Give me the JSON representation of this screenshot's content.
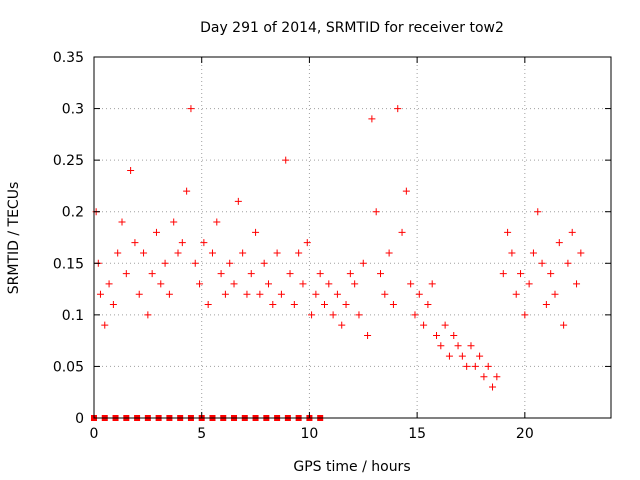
{
  "chart_data": {
    "type": "scatter",
    "title": "Day 291 of 2014, SRMTID for receiver tow2",
    "xlabel": "GPS time / hours",
    "ylabel": "SRMTID / TECUs",
    "xlim": [
      0,
      24
    ],
    "ylim": [
      0,
      0.35
    ],
    "x_ticks": [
      0,
      5,
      10,
      15,
      20
    ],
    "x_tick_labels": [
      "0",
      "5",
      "10",
      "15",
      "20"
    ],
    "y_ticks": [
      0,
      0.05,
      0.1,
      0.15,
      0.2,
      0.25,
      0.3,
      0.35
    ],
    "y_tick_labels": [
      "0",
      "0.05",
      "0.1",
      "0.15",
      "0.2",
      "0.25",
      "0.3",
      "0.35"
    ],
    "grid": true,
    "marker": "plus",
    "series": [
      {
        "name": "SRMTID",
        "color": "#ff0000",
        "x": [
          0.1,
          0.2,
          0.3,
          0.5,
          0.7,
          0.9,
          1.1,
          1.3,
          1.5,
          1.7,
          1.9,
          2.1,
          2.3,
          2.5,
          2.7,
          2.9,
          3.1,
          3.3,
          3.5,
          3.7,
          3.9,
          4.1,
          4.3,
          4.5,
          4.7,
          4.9,
          5.1,
          5.3,
          5.5,
          5.7,
          5.9,
          6.1,
          6.3,
          6.5,
          6.7,
          6.9,
          7.1,
          7.3,
          7.5,
          7.7,
          7.9,
          8.1,
          8.3,
          8.5,
          8.7,
          8.9,
          9.1,
          9.3,
          9.5,
          9.7,
          9.9,
          10.1,
          10.3,
          10.5,
          10.7,
          10.9,
          11.1,
          11.3,
          11.5,
          11.7,
          11.9,
          12.1,
          12.3,
          12.5,
          12.7,
          12.9,
          13.1,
          13.3,
          13.5,
          13.7,
          13.9,
          14.1,
          14.3,
          14.5,
          14.7,
          14.9,
          15.1,
          15.3,
          15.5,
          15.7,
          15.9,
          16.1,
          16.3,
          16.5,
          16.7,
          16.9,
          17.1,
          17.3,
          17.5,
          17.7,
          17.9,
          18.1,
          18.3,
          18.5,
          18.7,
          19.0,
          19.2,
          19.4,
          19.6,
          19.8,
          20.0,
          20.2,
          20.4,
          20.6,
          20.8,
          21.0,
          21.2,
          21.4,
          21.6,
          21.8,
          22.0,
          22.2,
          22.4,
          22.6
        ],
        "y": [
          0.2,
          0.15,
          0.12,
          0.09,
          0.13,
          0.11,
          0.16,
          0.19,
          0.14,
          0.24,
          0.17,
          0.12,
          0.16,
          0.1,
          0.14,
          0.18,
          0.13,
          0.15,
          0.12,
          0.19,
          0.16,
          0.17,
          0.22,
          0.3,
          0.15,
          0.13,
          0.17,
          0.11,
          0.16,
          0.19,
          0.14,
          0.12,
          0.15,
          0.13,
          0.21,
          0.16,
          0.12,
          0.14,
          0.18,
          0.12,
          0.15,
          0.13,
          0.11,
          0.16,
          0.12,
          0.25,
          0.14,
          0.11,
          0.16,
          0.13,
          0.17,
          0.1,
          0.12,
          0.14,
          0.11,
          0.13,
          0.1,
          0.12,
          0.09,
          0.11,
          0.14,
          0.13,
          0.1,
          0.15,
          0.08,
          0.29,
          0.2,
          0.14,
          0.12,
          0.16,
          0.11,
          0.3,
          0.18,
          0.22,
          0.13,
          0.1,
          0.12,
          0.09,
          0.11,
          0.13,
          0.08,
          0.07,
          0.09,
          0.06,
          0.08,
          0.07,
          0.06,
          0.05,
          0.07,
          0.05,
          0.06,
          0.04,
          0.05,
          0.03,
          0.04,
          0.14,
          0.18,
          0.16,
          0.12,
          0.14,
          0.1,
          0.13,
          0.16,
          0.2,
          0.15,
          0.11,
          0.14,
          0.12,
          0.17,
          0.09,
          0.15,
          0.18,
          0.13,
          0.16
        ]
      }
    ],
    "zero_markers_x": [
      0,
      0.5,
      1,
      1.5,
      2,
      2.5,
      3,
      3.5,
      4,
      4.5,
      5,
      5.5,
      6,
      6.5,
      7,
      7.5,
      8,
      8.5,
      9,
      9.5,
      10,
      10.5
    ]
  }
}
